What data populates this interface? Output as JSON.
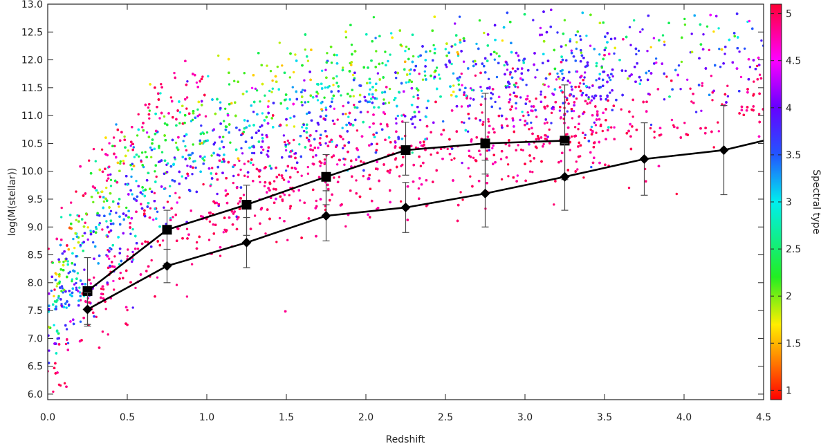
{
  "chart_data": {
    "type": "scatter",
    "xlabel": "Redshift",
    "ylabel": "log(M(stellar))",
    "xlim": [
      0.0,
      4.5
    ],
    "ylim": [
      5.9,
      13.0
    ],
    "x_ticks": [
      "0.0",
      "0.5",
      "1.0",
      "1.5",
      "2.0",
      "2.5",
      "3.0",
      "3.5",
      "4.0",
      "4.5"
    ],
    "x_tick_values": [
      0.0,
      0.5,
      1.0,
      1.5,
      2.0,
      2.5,
      3.0,
      3.5,
      4.0,
      4.5
    ],
    "y_ticks": [
      "6.0",
      "6.5",
      "7.0",
      "7.5",
      "8.0",
      "8.5",
      "9.0",
      "9.5",
      "10.0",
      "10.5",
      "11.0",
      "11.5",
      "12.0",
      "12.5",
      "13.0"
    ],
    "y_tick_values": [
      6.0,
      6.5,
      7.0,
      7.5,
      8.0,
      8.5,
      9.0,
      9.5,
      10.0,
      10.5,
      11.0,
      11.5,
      12.0,
      12.5,
      13.0
    ],
    "colorbar": {
      "label": "Spectral type",
      "range": [
        0.9,
        5.1
      ],
      "ticks": [
        "1",
        "1.5",
        "2",
        "2.5",
        "3",
        "3.5",
        "4",
        "4.5",
        "5"
      ],
      "tick_values": [
        1,
        1.5,
        2,
        2.5,
        3,
        3.5,
        4,
        4.5,
        5
      ],
      "colormap": "rainbow (red at 1 → yellow → green → cyan → blue → purple → magenta → red at 5)"
    },
    "scatter": {
      "description": "dense cloud of galaxies colored by spectral type; red (type ~5) dominant at low mass across all redshifts, green/yellow (type ~2) at high mass for z < 2.5, purple/blue at z > 2.5"
    },
    "series": [
      {
        "marker": "square",
        "x": [
          0.25,
          0.75,
          1.25,
          1.75,
          2.25,
          2.75,
          3.25
        ],
        "y": [
          7.85,
          8.95,
          9.4,
          9.9,
          10.38,
          10.5,
          10.55
        ],
        "yerr_low": [
          0.6,
          0.6,
          0.55,
          0.5,
          0.45,
          0.55,
          0.7
        ],
        "yerr_high": [
          0.6,
          0.35,
          0.35,
          0.4,
          0.5,
          0.9,
          1.0
        ]
      },
      {
        "marker": "diamond",
        "x": [
          0.25,
          0.75,
          1.25,
          1.75,
          2.25,
          2.75,
          3.25,
          3.75,
          4.25
        ],
        "y": [
          7.52,
          8.3,
          8.72,
          9.2,
          9.35,
          9.6,
          9.9,
          10.22,
          10.38
        ],
        "yerr_low": [
          0.3,
          0.3,
          0.45,
          0.45,
          0.45,
          0.6,
          0.6,
          0.65,
          0.8
        ],
        "yerr_high": [
          0.3,
          0.3,
          0.45,
          0.45,
          0.45,
          0.6,
          0.6,
          0.65,
          0.8
        ],
        "line_extends_to": [
          4.5,
          10.55
        ]
      }
    ]
  },
  "colors": {
    "errorbar": "#4a4a4a",
    "line": "#000000",
    "frame": "#222222"
  }
}
